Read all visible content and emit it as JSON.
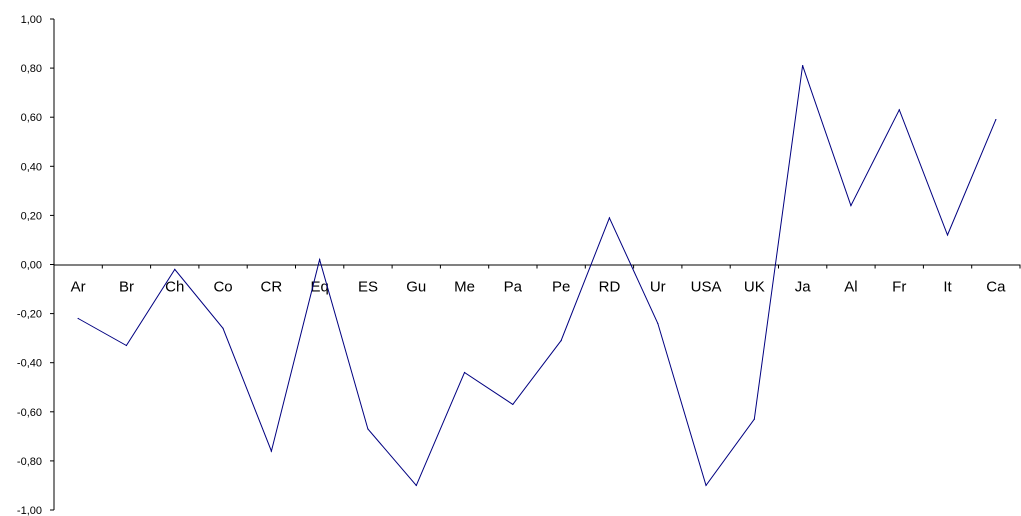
{
  "chart_data": {
    "type": "line",
    "title": "",
    "xlabel": "",
    "ylabel": "",
    "categories": [
      "Ar",
      "Br",
      "Ch",
      "Co",
      "CR",
      "Eq",
      "ES",
      "Gu",
      "Me",
      "Pa",
      "Pe",
      "RD",
      "Ur",
      "USA",
      "UK",
      "Ja",
      "Al",
      "Fr",
      "It",
      "Ca"
    ],
    "series": [
      {
        "values": [
          -0.22,
          -0.33,
          -0.02,
          -0.26,
          -0.76,
          0.02,
          -0.67,
          -0.9,
          -0.44,
          -0.57,
          -0.31,
          0.19,
          -0.24,
          -0.9,
          -0.63,
          0.81,
          0.24,
          0.63,
          0.12,
          0.59
        ],
        "color": "#000080"
      }
    ],
    "ylim": [
      -1.0,
      1.0
    ],
    "yticks": [
      "1,00",
      "0,80",
      "0,60",
      "0,40",
      "0,20",
      "0,00",
      "-0,20",
      "-0,40",
      "-0,60",
      "-0,80",
      "-1,00"
    ],
    "grid": false,
    "legend": "none"
  }
}
